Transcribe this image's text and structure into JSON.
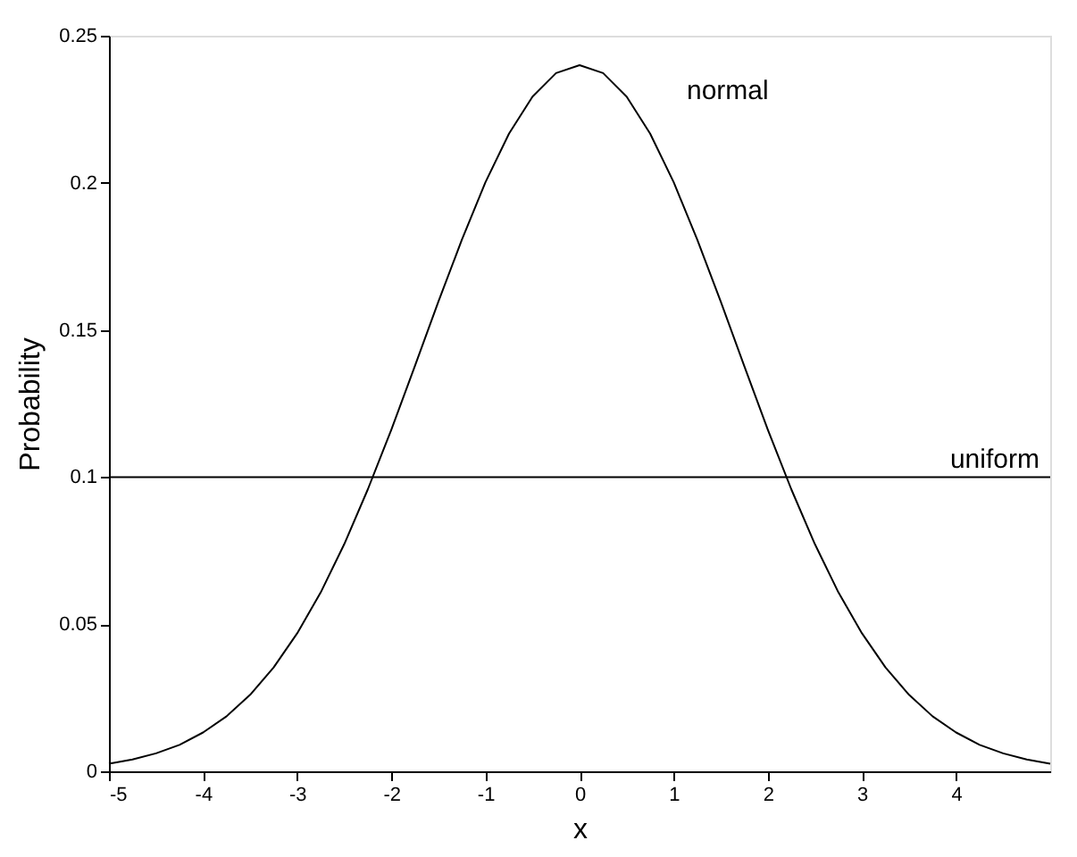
{
  "chart_data": {
    "type": "line",
    "xlabel": "x",
    "ylabel": "Probability",
    "xlim": [
      -5,
      5
    ],
    "ylim": [
      0,
      0.25
    ],
    "xticks": [
      -5,
      -4,
      -3,
      -2,
      -1,
      0,
      1,
      2,
      3,
      4
    ],
    "yticks": [
      0,
      0.05,
      0.1,
      0.15,
      0.2,
      0.25
    ],
    "grid": false,
    "marker": "none",
    "line_style": "solid",
    "series": [
      {
        "name": "normal",
        "color": "#000000",
        "x": [
          -5,
          -4.75,
          -4.5,
          -4.25,
          -4,
          -3.75,
          -3.5,
          -3.25,
          -3,
          -2.75,
          -2.5,
          -2.25,
          -2,
          -1.75,
          -1.5,
          -1.25,
          -1,
          -0.75,
          -0.5,
          -0.25,
          0,
          0.25,
          0.5,
          0.75,
          1,
          1.25,
          1.5,
          1.75,
          2,
          2.25,
          2.5,
          2.75,
          3,
          3.25,
          3.5,
          3.75,
          4,
          4.25,
          4.5,
          4.75,
          5
        ],
        "values": [
          0.0026,
          0.004,
          0.0061,
          0.009,
          0.0132,
          0.0187,
          0.026,
          0.0353,
          0.0469,
          0.0608,
          0.0772,
          0.0958,
          0.1161,
          0.1377,
          0.1596,
          0.1807,
          0.2002,
          0.2167,
          0.2293,
          0.2373,
          0.24,
          0.2373,
          0.2293,
          0.2167,
          0.2002,
          0.1807,
          0.1596,
          0.1377,
          0.1161,
          0.0958,
          0.0772,
          0.0608,
          0.0469,
          0.0353,
          0.026,
          0.0187,
          0.0132,
          0.009,
          0.0061,
          0.004,
          0.0026
        ]
      },
      {
        "name": "uniform",
        "color": "#000000",
        "x": [
          -5,
          5
        ],
        "values": [
          0.1,
          0.1
        ]
      }
    ]
  }
}
